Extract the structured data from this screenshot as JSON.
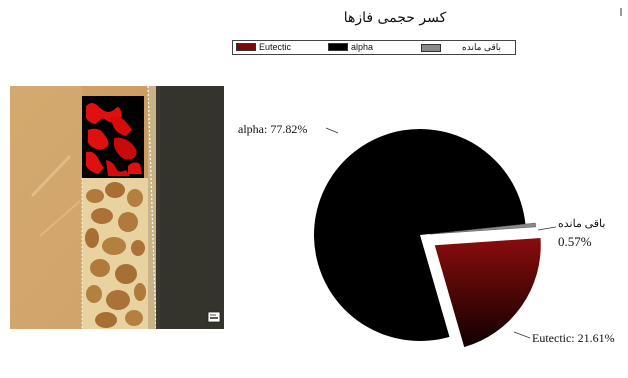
{
  "title": "کسر حجمی فازها",
  "legend": [
    {
      "label": "Eutectic",
      "color": "#7a0a0a"
    },
    {
      "label": "alpha",
      "color": "#000000"
    },
    {
      "label": "باقی مانده",
      "color": "#8a8a8a"
    }
  ],
  "chart_data": {
    "type": "pie",
    "title": "کسر حجمی فازها",
    "slices": [
      {
        "label": "alpha",
        "value": 77.82,
        "color": "#000000",
        "display": "alpha: 77.82%"
      },
      {
        "label": "Eutectic",
        "value": 21.61,
        "color": "#6e0a0a",
        "display": "Eutectic: 21.61%"
      },
      {
        "label": "باقی مانده",
        "value": 0.57,
        "color": "#8a8a8a",
        "display_name": "باقی مانده",
        "display_pct": "0.57%"
      }
    ],
    "legend_position": "top"
  },
  "micrograph": {
    "scale_icon": "scale-bar-icon"
  }
}
